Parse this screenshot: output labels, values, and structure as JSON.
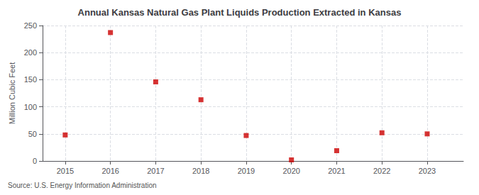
{
  "chart_data": {
    "type": "scatter",
    "title": "Annual Kansas Natural Gas Plant Liquids Production Extracted in Kansas",
    "ylabel": "Million Cubic Feet",
    "source": "Source: U.S. Energy Information Administration",
    "x": [
      2015,
      2016,
      2017,
      2018,
      2019,
      2020,
      2021,
      2022,
      2023
    ],
    "values": [
      48,
      237,
      146,
      113,
      47,
      2,
      19,
      52,
      50
    ],
    "color": "#cc0000",
    "marker": "square",
    "xlim": [
      2014.5,
      2023.8
    ],
    "xticks": [
      2015,
      2016,
      2017,
      2018,
      2019,
      2020,
      2021,
      2022,
      2023
    ],
    "ylim": [
      0,
      250
    ],
    "yticks": [
      0,
      50,
      100,
      150,
      200,
      250
    ],
    "grid": true
  }
}
